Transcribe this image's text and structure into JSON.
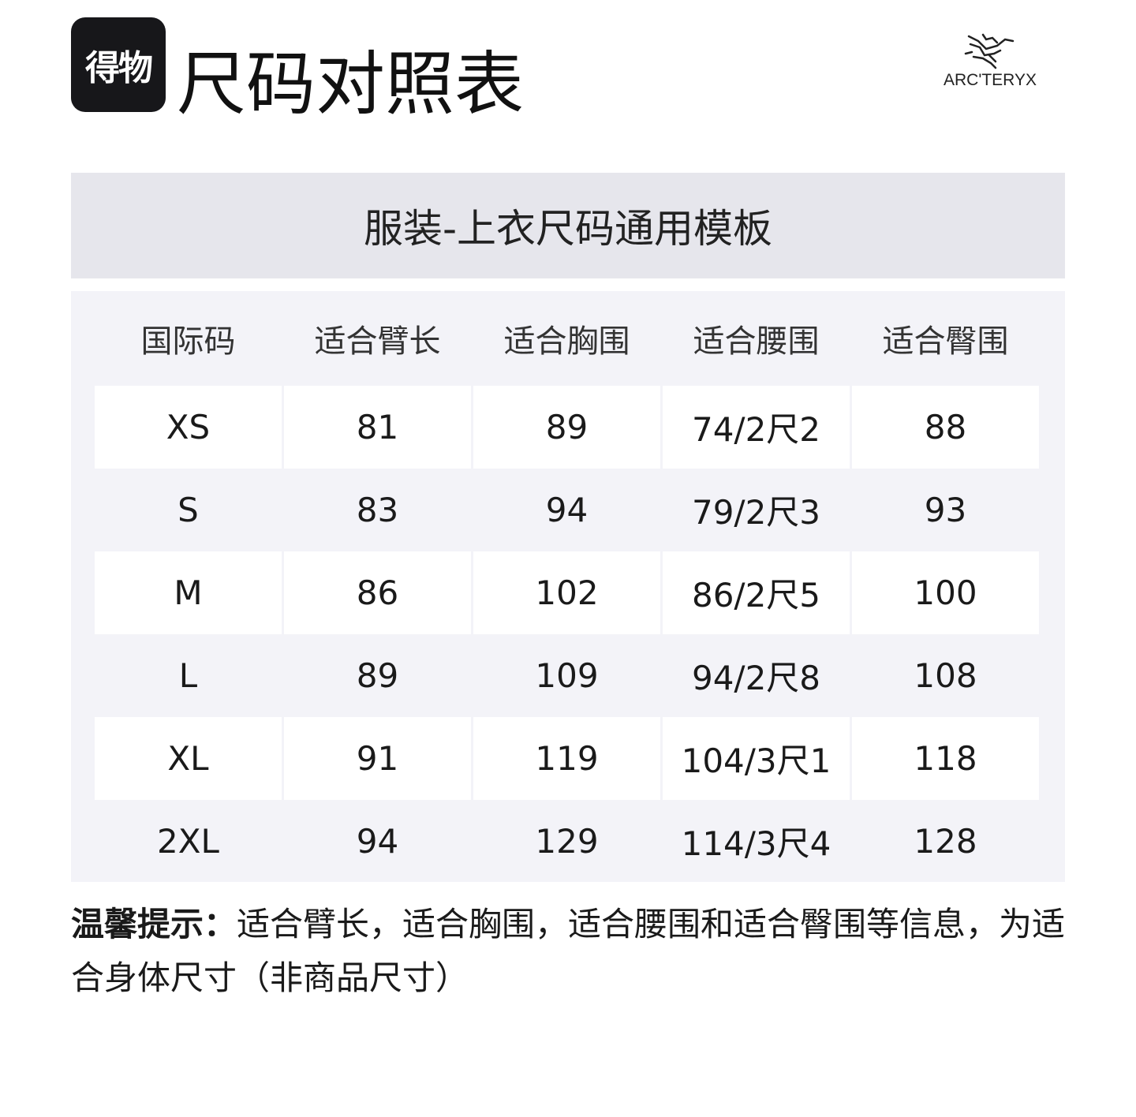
{
  "header": {
    "app_logo_text": "得物",
    "title": "尺码对照表",
    "brand_logo_text": "ARC'TERYX"
  },
  "subtitle": "服装-上衣尺码通用模板",
  "table": {
    "columns": [
      "国际码",
      "适合臂长",
      "适合胸围",
      "适合腰围",
      "适合臀围"
    ],
    "rows": [
      [
        "XS",
        "81",
        "89",
        "74/2尺2",
        "88"
      ],
      [
        "S",
        "83",
        "94",
        "79/2尺3",
        "93"
      ],
      [
        "M",
        "86",
        "102",
        "86/2尺5",
        "100"
      ],
      [
        "L",
        "89",
        "109",
        "94/2尺8",
        "108"
      ],
      [
        "XL",
        "91",
        "119",
        "104/3尺1",
        "118"
      ],
      [
        "2XL",
        "94",
        "129",
        "114/3尺4",
        "128"
      ]
    ]
  },
  "note": {
    "label": "温馨提示：",
    "text": "适合臂长，适合胸围，适合腰围和适合臀围等信息，为适合身体尺寸（非商品尺寸）"
  },
  "colors": {
    "subtitle_bg": "#e6e6ec",
    "table_bg": "#f3f3f8",
    "logo_bg": "#17171a"
  }
}
